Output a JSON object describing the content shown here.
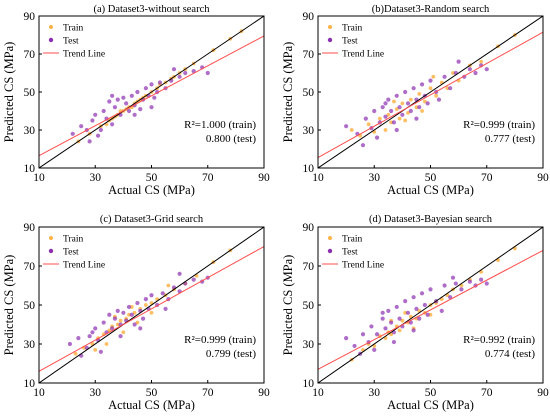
{
  "colors": {
    "train": "#ffb347",
    "test": "#8b2fb0",
    "trend": "#ff4d4d",
    "identity": "#000000"
  },
  "chart_data": [
    {
      "type": "scatter",
      "title": "(a) Dataset3-without search",
      "xlabel": "Actual CS (MPa)",
      "ylabel": "Predicted CS (MPa)",
      "xlim": [
        10,
        90
      ],
      "ylim": [
        10,
        90
      ],
      "xticks": [
        "10",
        "30",
        "50",
        "70",
        "90"
      ],
      "yticks": [
        "10",
        "30",
        "50",
        "70",
        "90"
      ],
      "legend": {
        "placement": "top-left",
        "entries": [
          "Train",
          "Test",
          "Trend Line"
        ]
      },
      "r2_train": "R²=1.000 (train)",
      "r2_test": "0.800 (test)",
      "trend_line": [
        [
          10,
          16.5
        ],
        [
          90,
          79.5
        ]
      ],
      "identity_line": [
        [
          10,
          10
        ],
        [
          90,
          90
        ]
      ],
      "train": [
        [
          24,
          24
        ],
        [
          28,
          28
        ],
        [
          32,
          32
        ],
        [
          35,
          35
        ],
        [
          37,
          37
        ],
        [
          38,
          38
        ],
        [
          40,
          40
        ],
        [
          42,
          42
        ],
        [
          44,
          44
        ],
        [
          45,
          45
        ],
        [
          47,
          47
        ],
        [
          50,
          50
        ],
        [
          52,
          52
        ],
        [
          55,
          55
        ],
        [
          58,
          58
        ],
        [
          62,
          62
        ],
        [
          65,
          65
        ],
        [
          72,
          72
        ],
        [
          78,
          78
        ],
        [
          82,
          82
        ],
        [
          34,
          33
        ],
        [
          39,
          40
        ],
        [
          43,
          42
        ],
        [
          48,
          48
        ],
        [
          53,
          54
        ],
        [
          36,
          36
        ],
        [
          41,
          41
        ],
        [
          46,
          46
        ],
        [
          57,
          57
        ],
        [
          60,
          60
        ]
      ],
      "test": [
        [
          22,
          28
        ],
        [
          25,
          32
        ],
        [
          28,
          24
        ],
        [
          29,
          35
        ],
        [
          30,
          38
        ],
        [
          32,
          30
        ],
        [
          33,
          40
        ],
        [
          34,
          36
        ],
        [
          35,
          45
        ],
        [
          36,
          33
        ],
        [
          37,
          42
        ],
        [
          38,
          46
        ],
        [
          39,
          38
        ],
        [
          40,
          47
        ],
        [
          41,
          44
        ],
        [
          42,
          40
        ],
        [
          43,
          48
        ],
        [
          44,
          43
        ],
        [
          45,
          50
        ],
        [
          46,
          41
        ],
        [
          47,
          46
        ],
        [
          48,
          52
        ],
        [
          49,
          48
        ],
        [
          50,
          54
        ],
        [
          51,
          47
        ],
        [
          52,
          50
        ],
        [
          53,
          55
        ],
        [
          55,
          52
        ],
        [
          57,
          56
        ],
        [
          60,
          58
        ],
        [
          62,
          60
        ],
        [
          65,
          61
        ],
        [
          68,
          63
        ],
        [
          70,
          60
        ],
        [
          36,
          48
        ],
        [
          31,
          27
        ],
        [
          27,
          30
        ],
        [
          44,
          38
        ],
        [
          50,
          42
        ],
        [
          58,
          62
        ]
      ]
    },
    {
      "type": "scatter",
      "title": "(b)Dataset3-Random search",
      "xlabel": "Actual CS (MPa)",
      "ylabel": "Predicted CS (MPa)",
      "xlim": [
        10,
        90
      ],
      "ylim": [
        10,
        90
      ],
      "xticks": [
        "10",
        "30",
        "50",
        "70",
        "90"
      ],
      "yticks": [
        "10",
        "30",
        "50",
        "70",
        "90"
      ],
      "legend": {
        "placement": "top-left",
        "entries": [
          "Train",
          "Test",
          "Trend Line"
        ]
      },
      "r2_train": "R²=0.999 (train)",
      "r2_test": "0.777 (test)",
      "trend_line": [
        [
          10,
          15.5
        ],
        [
          90,
          81.5
        ]
      ],
      "identity_line": [
        [
          10,
          10
        ],
        [
          90,
          90
        ]
      ],
      "train": [
        [
          22,
          30
        ],
        [
          25,
          27
        ],
        [
          28,
          33
        ],
        [
          30,
          29
        ],
        [
          32,
          36
        ],
        [
          34,
          30
        ],
        [
          35,
          38
        ],
        [
          36,
          34
        ],
        [
          38,
          41
        ],
        [
          39,
          36
        ],
        [
          40,
          44
        ],
        [
          42,
          39
        ],
        [
          43,
          46
        ],
        [
          45,
          42
        ],
        [
          46,
          49
        ],
        [
          48,
          45
        ],
        [
          50,
          52
        ],
        [
          52,
          48
        ],
        [
          54,
          55
        ],
        [
          56,
          52
        ],
        [
          58,
          60
        ],
        [
          60,
          56
        ],
        [
          64,
          64
        ],
        [
          68,
          66
        ],
        [
          74,
          74
        ],
        [
          80,
          80
        ],
        [
          37,
          45
        ],
        [
          41,
          35
        ],
        [
          47,
          40
        ],
        [
          51,
          58
        ]
      ],
      "test": [
        [
          20,
          32
        ],
        [
          24,
          28
        ],
        [
          27,
          36
        ],
        [
          29,
          31
        ],
        [
          30,
          40
        ],
        [
          32,
          34
        ],
        [
          33,
          42
        ],
        [
          34,
          37
        ],
        [
          35,
          46
        ],
        [
          36,
          40
        ],
        [
          37,
          34
        ],
        [
          38,
          48
        ],
        [
          39,
          42
        ],
        [
          40,
          38
        ],
        [
          41,
          50
        ],
        [
          42,
          44
        ],
        [
          43,
          40
        ],
        [
          44,
          52
        ],
        [
          45,
          46
        ],
        [
          46,
          42
        ],
        [
          47,
          54
        ],
        [
          48,
          48
        ],
        [
          49,
          44
        ],
        [
          50,
          56
        ],
        [
          52,
          50
        ],
        [
          53,
          46
        ],
        [
          55,
          58
        ],
        [
          57,
          52
        ],
        [
          59,
          60
        ],
        [
          62,
          58
        ],
        [
          64,
          62
        ],
        [
          66,
          60
        ],
        [
          68,
          64
        ],
        [
          70,
          62
        ],
        [
          26,
          22
        ],
        [
          31,
          26
        ],
        [
          45,
          36
        ],
        [
          60,
          66
        ],
        [
          38,
          30
        ],
        [
          34,
          44
        ]
      ]
    },
    {
      "type": "scatter",
      "title": "(c) Dataset3-Grid search",
      "xlabel": "Actual CS (MPa)",
      "ylabel": "Predicted CS (MPa)",
      "xlim": [
        10,
        90
      ],
      "ylim": [
        10,
        90
      ],
      "xticks": [
        "10",
        "30",
        "50",
        "70",
        "90"
      ],
      "yticks": [
        "10",
        "30",
        "50",
        "70",
        "90"
      ],
      "legend": {
        "placement": "top-left",
        "entries": [
          "Train",
          "Test",
          "Trend Line"
        ]
      },
      "r2_train": "R²=0.999 (train)",
      "r2_test": "0.799 (test)",
      "trend_line": [
        [
          10,
          16
        ],
        [
          90,
          80
        ]
      ],
      "identity_line": [
        [
          10,
          10
        ],
        [
          90,
          90
        ]
      ],
      "train": [
        [
          23,
          25
        ],
        [
          26,
          28
        ],
        [
          29,
          30
        ],
        [
          31,
          33
        ],
        [
          33,
          35
        ],
        [
          35,
          37
        ],
        [
          36,
          39
        ],
        [
          38,
          40
        ],
        [
          39,
          42
        ],
        [
          41,
          43
        ],
        [
          42,
          45
        ],
        [
          44,
          46
        ],
        [
          46,
          48
        ],
        [
          48,
          50
        ],
        [
          50,
          51
        ],
        [
          52,
          53
        ],
        [
          55,
          55
        ],
        [
          58,
          58
        ],
        [
          62,
          61
        ],
        [
          66,
          65
        ],
        [
          72,
          72
        ],
        [
          78,
          78
        ],
        [
          34,
          30
        ],
        [
          40,
          36
        ],
        [
          45,
          41
        ],
        [
          50,
          46
        ],
        [
          37,
          44
        ],
        [
          43,
          49
        ],
        [
          30,
          27
        ],
        [
          56,
          60
        ]
      ],
      "test": [
        [
          21,
          30
        ],
        [
          24,
          33
        ],
        [
          27,
          28
        ],
        [
          29,
          36
        ],
        [
          30,
          38
        ],
        [
          31,
          32
        ],
        [
          33,
          41
        ],
        [
          34,
          36
        ],
        [
          35,
          45
        ],
        [
          36,
          38
        ],
        [
          37,
          43
        ],
        [
          38,
          47
        ],
        [
          39,
          40
        ],
        [
          40,
          46
        ],
        [
          41,
          42
        ],
        [
          42,
          49
        ],
        [
          43,
          45
        ],
        [
          44,
          40
        ],
        [
          45,
          51
        ],
        [
          46,
          47
        ],
        [
          47,
          43
        ],
        [
          48,
          53
        ],
        [
          49,
          48
        ],
        [
          50,
          55
        ],
        [
          52,
          50
        ],
        [
          54,
          56
        ],
        [
          56,
          53
        ],
        [
          58,
          59
        ],
        [
          60,
          57
        ],
        [
          62,
          61
        ],
        [
          65,
          63
        ],
        [
          68,
          62
        ],
        [
          70,
          64
        ],
        [
          25,
          24
        ],
        [
          32,
          26
        ],
        [
          46,
          38
        ],
        [
          55,
          48
        ],
        [
          39,
          34
        ],
        [
          28,
          34
        ],
        [
          60,
          66
        ]
      ]
    },
    {
      "type": "scatter",
      "title": "(d) Dataset3-Bayesian search",
      "xlabel": "Actual CS (MPa)",
      "ylabel": "Predicted CS (MPa)",
      "xlim": [
        10,
        90
      ],
      "ylim": [
        10,
        90
      ],
      "xticks": [
        "10",
        "30",
        "50",
        "70",
        "90"
      ],
      "yticks": [
        "10",
        "30",
        "50",
        "70",
        "90"
      ],
      "legend": {
        "placement": "top-left",
        "entries": [
          "Train",
          "Test",
          "Trend Line"
        ]
      },
      "r2_train": "R²=0.992 (train)",
      "r2_test": "0.774 (test)",
      "trend_line": [
        [
          10,
          17
        ],
        [
          90,
          78
        ]
      ],
      "identity_line": [
        [
          10,
          10
        ],
        [
          90,
          90
        ]
      ],
      "train": [
        [
          22,
          22
        ],
        [
          26,
          27
        ],
        [
          28,
          30
        ],
        [
          30,
          29
        ],
        [
          32,
          34
        ],
        [
          34,
          33
        ],
        [
          35,
          36
        ],
        [
          36,
          35
        ],
        [
          38,
          39
        ],
        [
          39,
          37
        ],
        [
          40,
          42
        ],
        [
          42,
          41
        ],
        [
          43,
          44
        ],
        [
          45,
          43
        ],
        [
          46,
          47
        ],
        [
          48,
          46
        ],
        [
          50,
          50
        ],
        [
          52,
          51
        ],
        [
          54,
          53
        ],
        [
          56,
          55
        ],
        [
          58,
          58
        ],
        [
          61,
          60
        ],
        [
          64,
          63
        ],
        [
          68,
          67
        ],
        [
          74,
          73
        ],
        [
          80,
          79
        ],
        [
          36,
          42
        ],
        [
          44,
          38
        ],
        [
          41,
          46
        ],
        [
          50,
          45
        ]
      ],
      "test": [
        [
          20,
          33
        ],
        [
          23,
          29
        ],
        [
          26,
          35
        ],
        [
          28,
          31
        ],
        [
          29,
          39
        ],
        [
          31,
          35
        ],
        [
          33,
          43
        ],
        [
          34,
          38
        ],
        [
          35,
          47
        ],
        [
          36,
          41
        ],
        [
          37,
          36
        ],
        [
          38,
          49
        ],
        [
          39,
          43
        ],
        [
          40,
          39
        ],
        [
          41,
          52
        ],
        [
          42,
          46
        ],
        [
          43,
          41
        ],
        [
          44,
          54
        ],
        [
          45,
          48
        ],
        [
          46,
          43
        ],
        [
          47,
          56
        ],
        [
          48,
          50
        ],
        [
          49,
          45
        ],
        [
          50,
          58
        ],
        [
          52,
          52
        ],
        [
          54,
          47
        ],
        [
          55,
          60
        ],
        [
          57,
          54
        ],
        [
          59,
          61
        ],
        [
          61,
          58
        ],
        [
          64,
          62
        ],
        [
          66,
          60
        ],
        [
          68,
          63
        ],
        [
          70,
          61
        ],
        [
          25,
          25
        ],
        [
          30,
          27
        ],
        [
          44,
          37
        ],
        [
          58,
          64
        ],
        [
          37,
          31
        ],
        [
          33,
          46
        ]
      ]
    }
  ]
}
